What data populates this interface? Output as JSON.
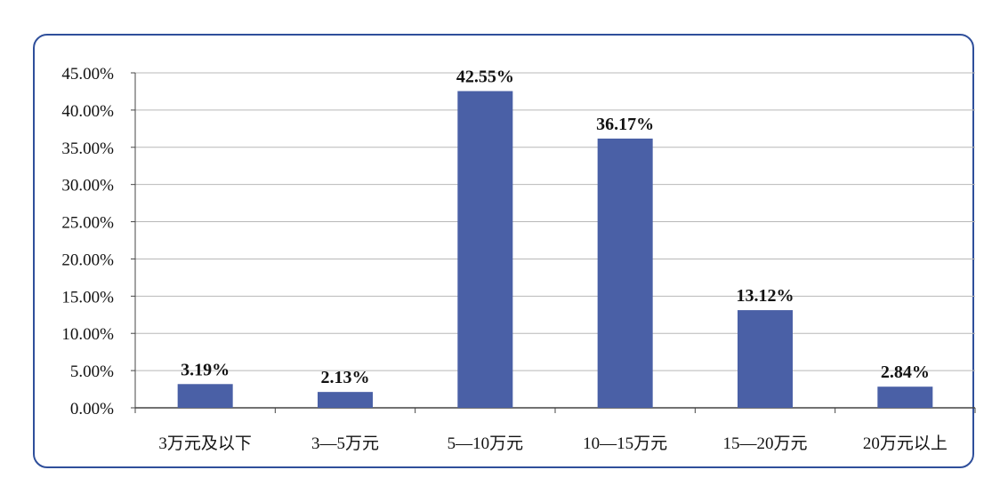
{
  "chart_data": {
    "type": "bar",
    "categories": [
      "3万元及以下",
      "3—5万元",
      "5—10万元",
      "10—15万元",
      "15—20万元",
      "20万元以上"
    ],
    "values": [
      3.19,
      2.13,
      42.55,
      36.17,
      13.12,
      2.84
    ],
    "data_labels": [
      "3.19%",
      "2.13%",
      "42.55%",
      "36.17%",
      "13.12%",
      "2.84%"
    ],
    "y_ticks": [
      0,
      5,
      10,
      15,
      20,
      25,
      30,
      35,
      40,
      45
    ],
    "y_tick_labels": [
      "0.00%",
      "5.00%",
      "10.00%",
      "15.00%",
      "20.00%",
      "25.00%",
      "30.00%",
      "35.00%",
      "40.00%",
      "45.00%"
    ],
    "ylim": [
      0,
      45
    ],
    "grid": true,
    "legend": "none",
    "title": "",
    "xlabel": "",
    "ylabel": "",
    "colors": {
      "bar": "#4a60a6",
      "grid": "#b8b8b8",
      "frame": "#2f4f9b",
      "axis": "#444444"
    }
  }
}
